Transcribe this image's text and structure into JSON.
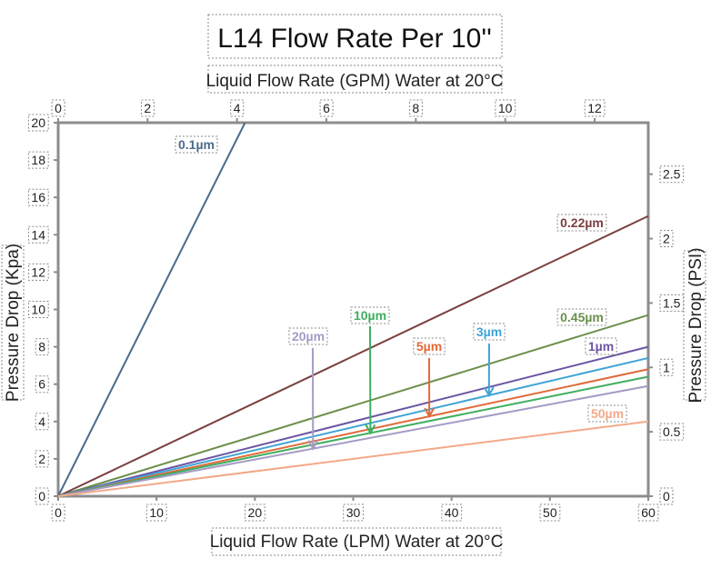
{
  "chart_data": {
    "type": "line",
    "title": "L14 Flow Rate Per 10''",
    "xlabel": "Liquid Flow Rate (LPM) Water at 20°C",
    "x2label": "Liquid Flow Rate (GPM) Water at 20°C",
    "ylabel": "Pressure Drop (Kpa)",
    "y2label": "Pressure Drop (PSI)",
    "xlim": [
      0,
      60
    ],
    "ylim": [
      0,
      20
    ],
    "x2lim": [
      0,
      13.2
    ],
    "y2lim": [
      0,
      2.9
    ],
    "xticks": [
      "0",
      "10",
      "20",
      "30",
      "40",
      "50",
      "60"
    ],
    "x2ticks": [
      "0",
      "2",
      "4",
      "6",
      "8",
      "10",
      "12"
    ],
    "yticks": [
      "0",
      "2",
      "4",
      "6",
      "8",
      "10",
      "12",
      "14",
      "16",
      "18",
      "20"
    ],
    "y2ticks": [
      "0",
      "0.5",
      "1",
      "1.5",
      "2",
      "2.5"
    ],
    "grid": false,
    "legend": "inline labels",
    "series": [
      {
        "name": "0.1µm",
        "color": "#4a6b8a",
        "x": [
          0,
          19
        ],
        "y": [
          0,
          20
        ]
      },
      {
        "name": "0.22µm",
        "color": "#7b3f3f",
        "x": [
          0,
          60
        ],
        "y": [
          0,
          15
        ]
      },
      {
        "name": "0.45µm",
        "color": "#6b8f4a",
        "x": [
          0,
          60
        ],
        "y": [
          0,
          9.7
        ]
      },
      {
        "name": "1µm",
        "color": "#6b55a3",
        "x": [
          0,
          60
        ],
        "y": [
          0,
          8.0
        ]
      },
      {
        "name": "3µm",
        "color": "#3fa4d6",
        "x": [
          0,
          60
        ],
        "y": [
          0,
          7.4
        ]
      },
      {
        "name": "5µm",
        "color": "#e06a3a",
        "x": [
          0,
          60
        ],
        "y": [
          0,
          6.8
        ]
      },
      {
        "name": "10µm",
        "color": "#3fae5f",
        "x": [
          0,
          60
        ],
        "y": [
          0,
          6.4
        ]
      },
      {
        "name": "20µm",
        "color": "#a59bc6",
        "x": [
          0,
          60
        ],
        "y": [
          0,
          5.9
        ]
      },
      {
        "name": "50µm",
        "color": "#f2a98a",
        "x": [
          0,
          60
        ],
        "y": [
          0,
          4.0
        ]
      }
    ]
  }
}
